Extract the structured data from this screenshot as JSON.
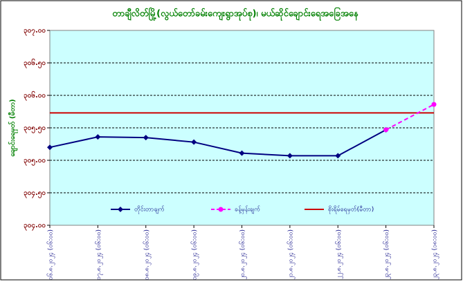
{
  "chart_data": {
    "type": "line",
    "title": "တာချီလိတ်မြို့(လွယ်တော်ခမ်းကျေးရွာအုပ်စု)၊ မယ်ဆိုင်ချောင်းရေအခြေအနေ",
    "y_label": "ချောင်းရေမှတ် (မီတာ)",
    "categories": [
      "၁၆.၈.၂၀၂၄ (၀၆:၀၀)",
      "၁၇.၈.၂၀၂၄ (၀၆:၀၀)",
      "၁၈.၈.၂၀၂၄ (၀၆:၀၀)",
      "၁၉.၈.၂၀၂၄ (၀၆:၀၀)",
      "၂၀.၈.၂၀၂၄ (၀၆:၀၀)",
      "၂၁.၈.၂၀၂၄ (၀၆:၀၀)",
      "၂၂.၈.၂၀၂၄ (၀၆:၀၀)",
      "၂၃.၈.၂၀၂၄ (၀၆:၀၀)",
      "၂၃.၈.၂၀၂၄ (၁၈:၀၀)"
    ],
    "series": [
      {
        "name": "တိုင်းတာချက်",
        "color": "#000080",
        "dashed": false,
        "marker": "diamond",
        "values": [
          305.2,
          305.36,
          305.35,
          305.28,
          305.11,
          305.07,
          305.07,
          305.47,
          null
        ]
      },
      {
        "name": "ခန့်မှန်းချက်",
        "color": "#ff00ff",
        "dashed": true,
        "marker": "circle",
        "values": [
          null,
          null,
          null,
          null,
          null,
          null,
          null,
          305.47,
          305.86
        ]
      }
    ],
    "threshold": {
      "name": "စိုးရိမ်ရေမှတ်(မီတာ)",
      "value": 305.73,
      "color": "#cc0000"
    },
    "ylim": [
      304.0,
      307.0
    ],
    "yticks": [
      {
        "value": 304.0,
        "label": "၃၀၄.၀၀"
      },
      {
        "value": 304.5,
        "label": "၃၀၄.၅၀"
      },
      {
        "value": 305.0,
        "label": "၃၀၅.၀၀"
      },
      {
        "value": 305.5,
        "label": "၃၀၅.၅၀"
      },
      {
        "value": 306.0,
        "label": "၃၀၆.၀၀"
      },
      {
        "value": 306.5,
        "label": "၃၀၆.၅၀"
      },
      {
        "value": 307.0,
        "label": "၃၀၇.၀၀"
      }
    ],
    "grid": true
  }
}
